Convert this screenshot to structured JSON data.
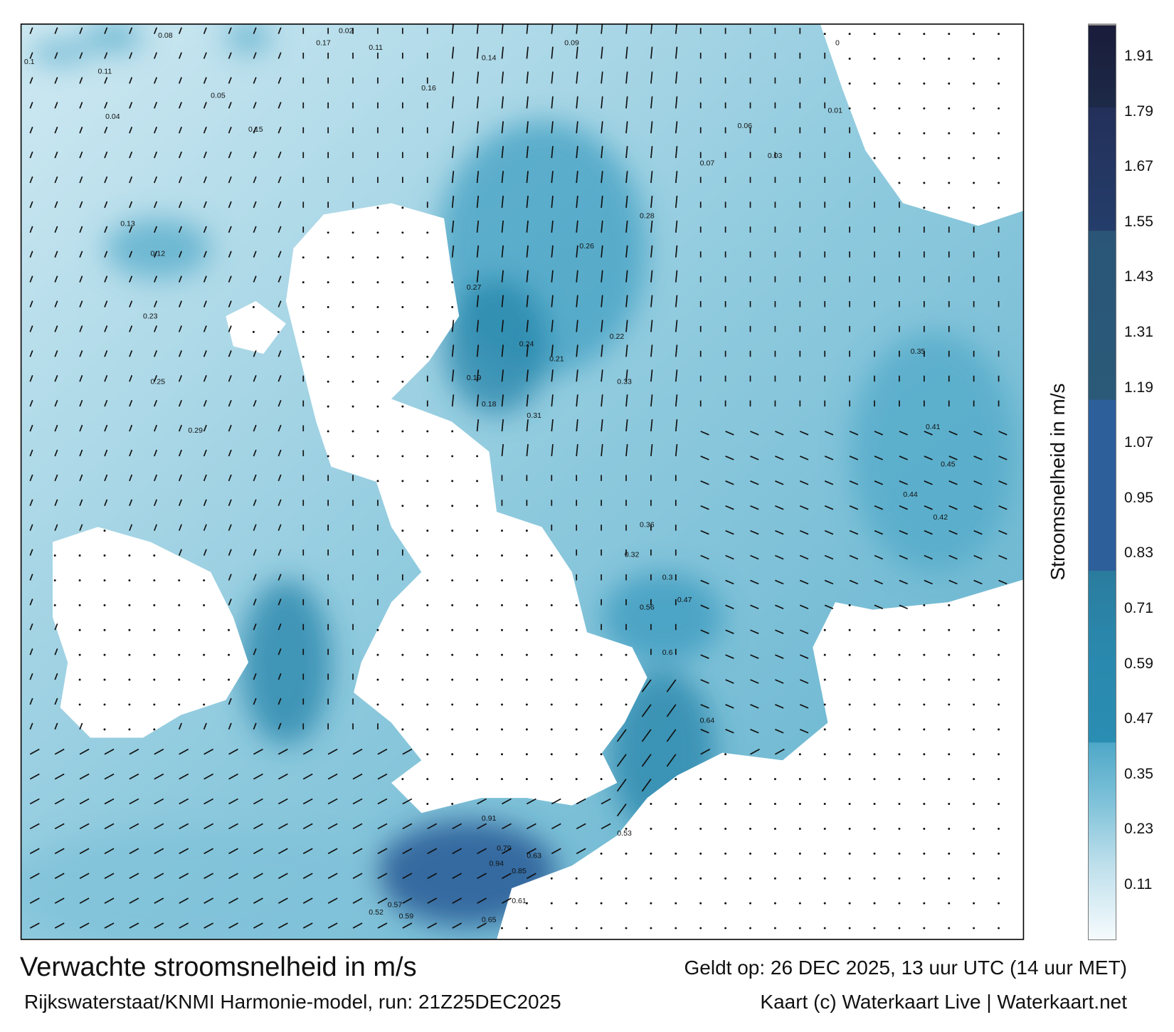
{
  "title": "Verwachte stroomsnelheid in m/s",
  "valid_time": "Geldt op: 26 DEC 2025, 13 uur UTC (14 uur MET)",
  "source": "Rijkswaterstaat/KNMI Harmonie-model, run: 21Z25DEC2025",
  "credit": "Kaart (c) Waterkaart Live | Waterkaart.net",
  "colorbar": {
    "title": "Stroomsnelheid in m/s",
    "ticks": [
      "1.91",
      "1.79",
      "1.67",
      "1.55",
      "1.43",
      "1.31",
      "1.19",
      "1.07",
      "0.95",
      "0.83",
      "0.71",
      "0.59",
      "0.47",
      "0.35",
      "0.23",
      "0.11"
    ],
    "colors": {
      "low": "#f6fbfd",
      "mid": "#2a8db2",
      "high": "#2d5f9a",
      "max": "#1a1c3a"
    }
  },
  "colors": {
    "sea_light": "#d8eef5",
    "sea_mid": "#7fc2d9",
    "sea_dark": "#2a88ad",
    "land": "#ffffff"
  },
  "speed_labels": [
    "0.1",
    "0.08",
    "0.11",
    "0.04",
    "0.02",
    "0.11",
    "0.05",
    "0.15",
    "0.13",
    "0.12",
    "0.23",
    "0.25",
    "0.29",
    "0.27",
    "0.26",
    "0.28",
    "0.24",
    "0.21",
    "0.22",
    "0.19",
    "0.18",
    "0.31",
    "0.33",
    "0.35",
    "0.41",
    "0.45",
    "0.44",
    "0.42",
    "0.36",
    "0.32",
    "0.3",
    "0.47",
    "0.56",
    "0.6",
    "0.64",
    "0.91",
    "0.79",
    "0.94",
    "0.85",
    "0.63",
    "0.65",
    "0.52",
    "0.57",
    "0.59",
    "0.61",
    "0.53",
    "0.17",
    "0.16",
    "0.14",
    "0.09",
    "0.07",
    "0.06",
    "0.03",
    "0.01",
    "0"
  ]
}
